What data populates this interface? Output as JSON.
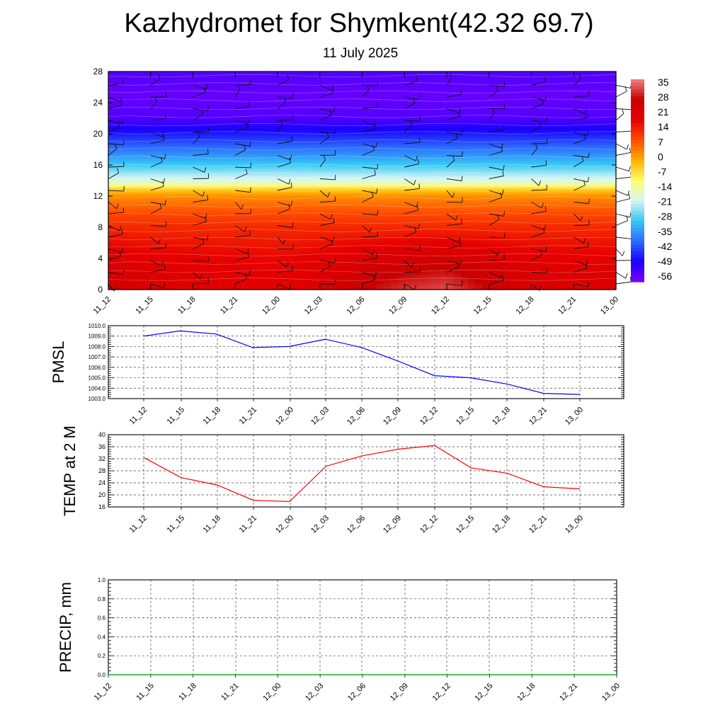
{
  "header": {
    "title": "Kazhydromet for Shymkent(42.32 69.7)",
    "date": "11 July 2025"
  },
  "time_labels": [
    "11_12",
    "11_15",
    "11_18",
    "11_21",
    "12_00",
    "12_03",
    "12_06",
    "12_09",
    "12_12",
    "12_15",
    "12_18",
    "12_21",
    "13_00"
  ],
  "chart_data": [
    {
      "type": "heatmap",
      "description_label": "",
      "ylim": [
        0,
        28
      ],
      "y_ticks": [
        0,
        4,
        8,
        12,
        16,
        20,
        24,
        28
      ],
      "x": [
        "11_12",
        "11_15",
        "11_18",
        "11_21",
        "12_00",
        "12_03",
        "12_06",
        "12_09",
        "12_12",
        "12_15",
        "12_18",
        "12_21",
        "13_00"
      ],
      "wind_barbs": true,
      "colorbar": {
        "labels": [
          35,
          28,
          21,
          14,
          7,
          0,
          -7,
          -14,
          -21,
          -28,
          -35,
          -42,
          -49,
          -56
        ],
        "min": -60,
        "max": 38
      },
      "temperature_profile": {
        "heights": [
          0,
          2,
          4,
          6,
          8,
          10,
          12,
          13,
          13.5,
          15,
          17,
          20,
          22,
          25,
          28
        ],
        "values_mid": [
          26,
          24,
          21,
          17,
          13,
          8,
          2,
          -6,
          -16,
          -25,
          -35,
          -48,
          -56,
          -58,
          -56
        ],
        "surface_values": [
          26,
          22,
          21,
          20,
          19,
          22,
          28,
          32,
          34,
          28,
          23,
          22,
          22
        ]
      },
      "colors": {
        "stops": [
          "#7a00ff",
          "#1a00ff",
          "#2c6cff",
          "#36c8f4",
          "#d6f5f5",
          "#ffff6a",
          "#ffb000",
          "#ff4a00",
          "#e60000",
          "#c80000",
          "#f08080"
        ]
      }
    },
    {
      "type": "line",
      "ylabel": "PMSL",
      "ylim": [
        1003.0,
        1010.0
      ],
      "y_ticks": [
        1003.0,
        1004.0,
        1005.0,
        1006.0,
        1007.0,
        1008.0,
        1009.0,
        1010.0
      ],
      "x": [
        "11_12",
        "11_15",
        "11_18",
        "11_21",
        "12_00",
        "12_03",
        "12_06",
        "12_09",
        "12_12",
        "12_15",
        "12_18",
        "12_21",
        "13_00"
      ],
      "series": [
        {
          "values": [
            1009.0,
            1009.5,
            1009.2,
            1007.9,
            1008.0,
            1008.7,
            1007.9,
            1006.6,
            1005.2,
            1005.0,
            1004.4,
            1003.5,
            1003.4
          ],
          "color": "#0000ff"
        }
      ]
    },
    {
      "type": "line",
      "ylabel": "TEMP at 2 M",
      "ylim": [
        16,
        40
      ],
      "y_ticks": [
        16,
        20,
        24,
        28,
        32,
        36,
        40
      ],
      "x": [
        "11_12",
        "11_15",
        "11_18",
        "11_21",
        "12_00",
        "12_03",
        "12_06",
        "12_09",
        "12_12",
        "12_15",
        "12_18",
        "12_21",
        "13_00"
      ],
      "series": [
        {
          "values": [
            32.3,
            25.8,
            23.3,
            18.2,
            17.8,
            29.5,
            33.0,
            35.2,
            36.4,
            29.0,
            27.2,
            22.7,
            22.0
          ],
          "color": "#ff0000"
        }
      ]
    },
    {
      "type": "line",
      "ylabel": "PRECIP, mm",
      "ylim": [
        0.0,
        1.0
      ],
      "y_ticks": [
        "0.0",
        "0.2",
        "0.4",
        "0.6",
        "0.8",
        "1.0"
      ],
      "x": [
        "11_12",
        "11_15",
        "11_18",
        "11_21",
        "12_00",
        "12_03",
        "12_06",
        "12_09",
        "12_12",
        "12_15",
        "12_18",
        "12_21",
        "13_00"
      ],
      "series": [
        {
          "values": [
            0,
            0,
            0,
            0,
            0,
            0,
            0,
            0,
            0,
            0,
            0,
            0,
            0
          ],
          "color": "#00aa00"
        }
      ]
    }
  ]
}
